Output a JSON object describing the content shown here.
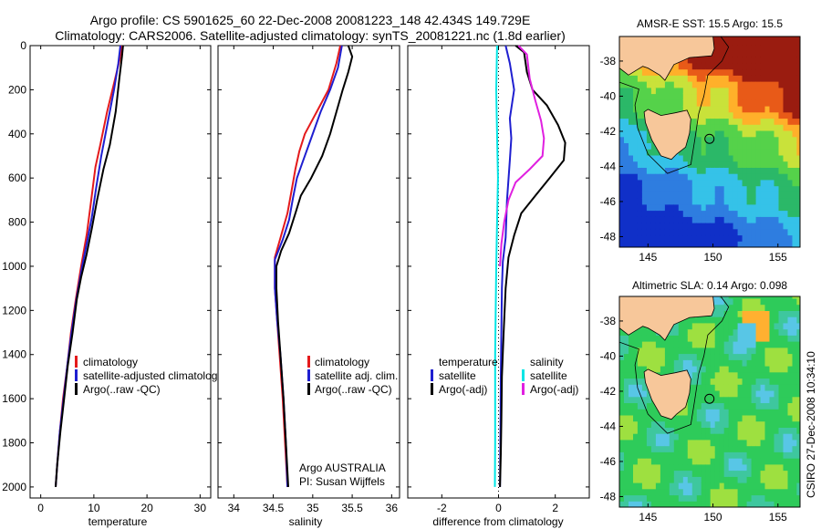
{
  "header": {
    "line1": "Argo profile: CS 5901625_60 22-Dec-2008 20081223_148 42.434S 149.729E",
    "line2": "Climatology: CARS2006. Satellite-adjusted climatology: synTS_20081221.nc (1.8d earlier)"
  },
  "side_label": "CSIRO 27-Dec-2008 10:34:10",
  "colors": {
    "climatology": "#e41a1c",
    "satellite": "#1f1fd0",
    "argo": "#000000",
    "satellite_salinity": "#00e5e5",
    "argo_salinity": "#e020e0",
    "land": "#f7c79a"
  },
  "chart_data": [
    {
      "type": "line",
      "id": "temperature",
      "xlabel": "temperature",
      "ylabel": "",
      "xlim": [
        -2,
        32
      ],
      "ylim": [
        2050,
        0
      ],
      "xticks": [
        0,
        10,
        20,
        30
      ],
      "yticks": [
        0,
        200,
        400,
        600,
        800,
        1000,
        1200,
        1400,
        1600,
        1800,
        2000
      ],
      "legend": {
        "placement": "bottom-left",
        "entries": [
          "climatology",
          "satellite-adjusted climatology",
          "Argo(..raw -QC)"
        ]
      },
      "series": [
        {
          "name": "climatology",
          "color_key": "climatology",
          "points": [
            [
              15.3,
              0
            ],
            [
              14.9,
              60
            ],
            [
              14.0,
              150
            ],
            [
              12.5,
              300
            ],
            [
              11.2,
              450
            ],
            [
              10.3,
              550
            ],
            [
              9.5,
              700
            ],
            [
              8.7,
              850
            ],
            [
              7.6,
              1000
            ],
            [
              6.6,
              1150
            ],
            [
              5.7,
              1300
            ],
            [
              5.0,
              1450
            ],
            [
              4.2,
              1600
            ],
            [
              3.6,
              1750
            ],
            [
              3.1,
              1900
            ],
            [
              2.8,
              2000
            ]
          ]
        },
        {
          "name": "satellite-adjusted climatology",
          "color_key": "satellite",
          "points": [
            [
              15.0,
              0
            ],
            [
              14.6,
              80
            ],
            [
              13.8,
              200
            ],
            [
              12.6,
              350
            ],
            [
              11.4,
              500
            ],
            [
              10.4,
              650
            ],
            [
              9.6,
              780
            ],
            [
              8.8,
              880
            ],
            [
              7.8,
              1000
            ],
            [
              6.7,
              1150
            ],
            [
              5.8,
              1300
            ],
            [
              5.0,
              1450
            ],
            [
              4.3,
              1600
            ],
            [
              3.6,
              1750
            ],
            [
              3.1,
              1900
            ],
            [
              2.8,
              2000
            ]
          ]
        },
        {
          "name": "Argo(..raw -QC)",
          "color_key": "argo",
          "points": [
            [
              15.5,
              0
            ],
            [
              15.3,
              50
            ],
            [
              14.8,
              150
            ],
            [
              14.1,
              300
            ],
            [
              13.0,
              450
            ],
            [
              11.8,
              560
            ],
            [
              10.6,
              700
            ],
            [
              9.6,
              830
            ],
            [
              8.6,
              950
            ],
            [
              7.6,
              1050
            ],
            [
              6.8,
              1150
            ],
            [
              6.0,
              1300
            ],
            [
              5.1,
              1450
            ],
            [
              4.4,
              1600
            ],
            [
              3.7,
              1750
            ],
            [
              3.1,
              1900
            ],
            [
              2.8,
              2000
            ]
          ]
        }
      ]
    },
    {
      "type": "line",
      "id": "salinity",
      "xlabel": "salinity",
      "ylabel": "",
      "xlim": [
        33.8,
        36.1
      ],
      "ylim": [
        2050,
        0
      ],
      "xticks": [
        34,
        34.5,
        35,
        35.5,
        36
      ],
      "xtick_labels": [
        "34",
        "34.5",
        "35",
        "35.5",
        "36"
      ],
      "legend": {
        "placement": "bottom-right",
        "entries": [
          "climatology",
          "satellite adj. clim.",
          "Argo(..raw -QC)"
        ]
      },
      "annotation": [
        "Argo AUSTRALIA",
        "PI: Susan Wijffels"
      ],
      "series": [
        {
          "name": "climatology",
          "color_key": "climatology",
          "points": [
            [
              35.35,
              0
            ],
            [
              35.3,
              80
            ],
            [
              35.2,
              200
            ],
            [
              35.05,
              300
            ],
            [
              34.9,
              400
            ],
            [
              34.83,
              480
            ],
            [
              34.78,
              560
            ],
            [
              34.73,
              660
            ],
            [
              34.68,
              760
            ],
            [
              34.6,
              860
            ],
            [
              34.52,
              960
            ],
            [
              34.52,
              1100
            ],
            [
              34.55,
              1250
            ],
            [
              34.58,
              1400
            ],
            [
              34.62,
              1600
            ],
            [
              34.65,
              1800
            ],
            [
              34.68,
              2000
            ]
          ]
        },
        {
          "name": "satellite adj. clim.",
          "color_key": "satellite",
          "points": [
            [
              35.37,
              0
            ],
            [
              35.32,
              100
            ],
            [
              35.22,
              200
            ],
            [
              35.1,
              300
            ],
            [
              34.98,
              420
            ],
            [
              34.88,
              520
            ],
            [
              34.8,
              600
            ],
            [
              34.75,
              690
            ],
            [
              34.7,
              790
            ],
            [
              34.62,
              880
            ],
            [
              34.52,
              970
            ],
            [
              34.52,
              1100
            ],
            [
              34.55,
              1250
            ],
            [
              34.59,
              1400
            ],
            [
              34.63,
              1600
            ],
            [
              34.66,
              1800
            ],
            [
              34.68,
              2000
            ]
          ]
        },
        {
          "name": "Argo(..raw -QC)",
          "color_key": "argo",
          "points": [
            [
              35.45,
              0
            ],
            [
              35.5,
              50
            ],
            [
              35.45,
              120
            ],
            [
              35.38,
              200
            ],
            [
              35.3,
              300
            ],
            [
              35.22,
              400
            ],
            [
              35.12,
              500
            ],
            [
              34.98,
              600
            ],
            [
              34.85,
              680
            ],
            [
              34.78,
              760
            ],
            [
              34.7,
              850
            ],
            [
              34.6,
              930
            ],
            [
              34.54,
              1000
            ],
            [
              34.54,
              1100
            ],
            [
              34.56,
              1250
            ],
            [
              34.59,
              1400
            ],
            [
              34.63,
              1600
            ],
            [
              34.66,
              1800
            ],
            [
              34.69,
              2000
            ]
          ]
        }
      ]
    },
    {
      "type": "line",
      "id": "difference",
      "xlabel": "difference from climatology",
      "ylabel": "",
      "xlim": [
        -3.2,
        3.2
      ],
      "ylim": [
        2050,
        0
      ],
      "xticks": [
        -2,
        0,
        2
      ],
      "zero_line": 0,
      "legend": {
        "placement": "bottom",
        "groups": [
          {
            "title": "temperature",
            "entries": [
              "satellite",
              "Argo(-adj)"
            ]
          },
          {
            "title": "salinity",
            "entries": [
              "satellite",
              "Argo(-adj)"
            ]
          }
        ]
      },
      "series": [
        {
          "name": "temperature satellite",
          "color_key": "satellite",
          "points": [
            [
              0.25,
              0
            ],
            [
              0.4,
              80
            ],
            [
              0.55,
              200
            ],
            [
              0.4,
              330
            ],
            [
              0.45,
              420
            ],
            [
              0.4,
              520
            ],
            [
              0.3,
              700
            ],
            [
              0.25,
              870
            ],
            [
              0.15,
              980
            ],
            [
              0.12,
              1100
            ],
            [
              0.1,
              1300
            ],
            [
              0.08,
              1500
            ],
            [
              0.07,
              1700
            ],
            [
              0.06,
              1850
            ],
            [
              0.05,
              2000
            ]
          ]
        },
        {
          "name": "temperature Argo(-adj)",
          "color_key": "argo",
          "points": [
            [
              0.6,
              0
            ],
            [
              0.9,
              30
            ],
            [
              1.0,
              120
            ],
            [
              1.2,
              200
            ],
            [
              1.7,
              270
            ],
            [
              2.1,
              360
            ],
            [
              2.35,
              440
            ],
            [
              2.3,
              520
            ],
            [
              1.8,
              600
            ],
            [
              1.3,
              680
            ],
            [
              0.8,
              760
            ],
            [
              0.55,
              860
            ],
            [
              0.35,
              960
            ],
            [
              0.25,
              1100
            ],
            [
              0.18,
              1300
            ],
            [
              0.12,
              1500
            ],
            [
              0.1,
              1700
            ],
            [
              0.08,
              1850
            ],
            [
              0.05,
              2000
            ]
          ]
        },
        {
          "name": "salinity satellite",
          "color_key": "satellite_salinity",
          "points": [
            [
              -0.05,
              0
            ],
            [
              -0.08,
              200
            ],
            [
              -0.05,
              400
            ],
            [
              -0.02,
              600
            ],
            [
              -0.05,
              800
            ],
            [
              -0.08,
              1000
            ],
            [
              -0.1,
              1200
            ],
            [
              -0.12,
              1400
            ],
            [
              -0.12,
              1600
            ],
            [
              -0.12,
              1800
            ],
            [
              -0.13,
              2000
            ]
          ]
        },
        {
          "name": "salinity Argo(-adj)",
          "color_key": "argo_salinity",
          "points": [
            [
              0.7,
              0
            ],
            [
              1.0,
              40
            ],
            [
              1.1,
              150
            ],
            [
              1.3,
              250
            ],
            [
              1.5,
              340
            ],
            [
              1.6,
              420
            ],
            [
              1.55,
              500
            ],
            [
              1.1,
              560
            ],
            [
              0.6,
              620
            ],
            [
              0.35,
              700
            ],
            [
              0.2,
              800
            ],
            [
              0.1,
              900
            ],
            [
              0.05,
              1000
            ]
          ]
        }
      ]
    }
  ],
  "maps": [
    {
      "id": "sst",
      "title": "AMSR-E SST: 15.5 Argo: 15.5",
      "xticks": [
        145,
        150,
        155
      ],
      "yticks": [
        -38,
        -40,
        -42,
        -44,
        -46,
        -48
      ],
      "xlim": [
        142.8,
        156.7
      ],
      "ylim": [
        -48.6,
        -36.6
      ],
      "marker": [
        149.73,
        -42.43
      ]
    },
    {
      "id": "sla",
      "title": "Altimetric SLA: 0.14 Argo: 0.098",
      "xticks": [
        145,
        150,
        155
      ],
      "yticks": [
        -38,
        -40,
        -42,
        -44,
        -46,
        -48
      ],
      "xlim": [
        142.8,
        156.7
      ],
      "ylim": [
        -48.6,
        -36.6
      ],
      "marker": [
        149.73,
        -42.43
      ]
    }
  ]
}
